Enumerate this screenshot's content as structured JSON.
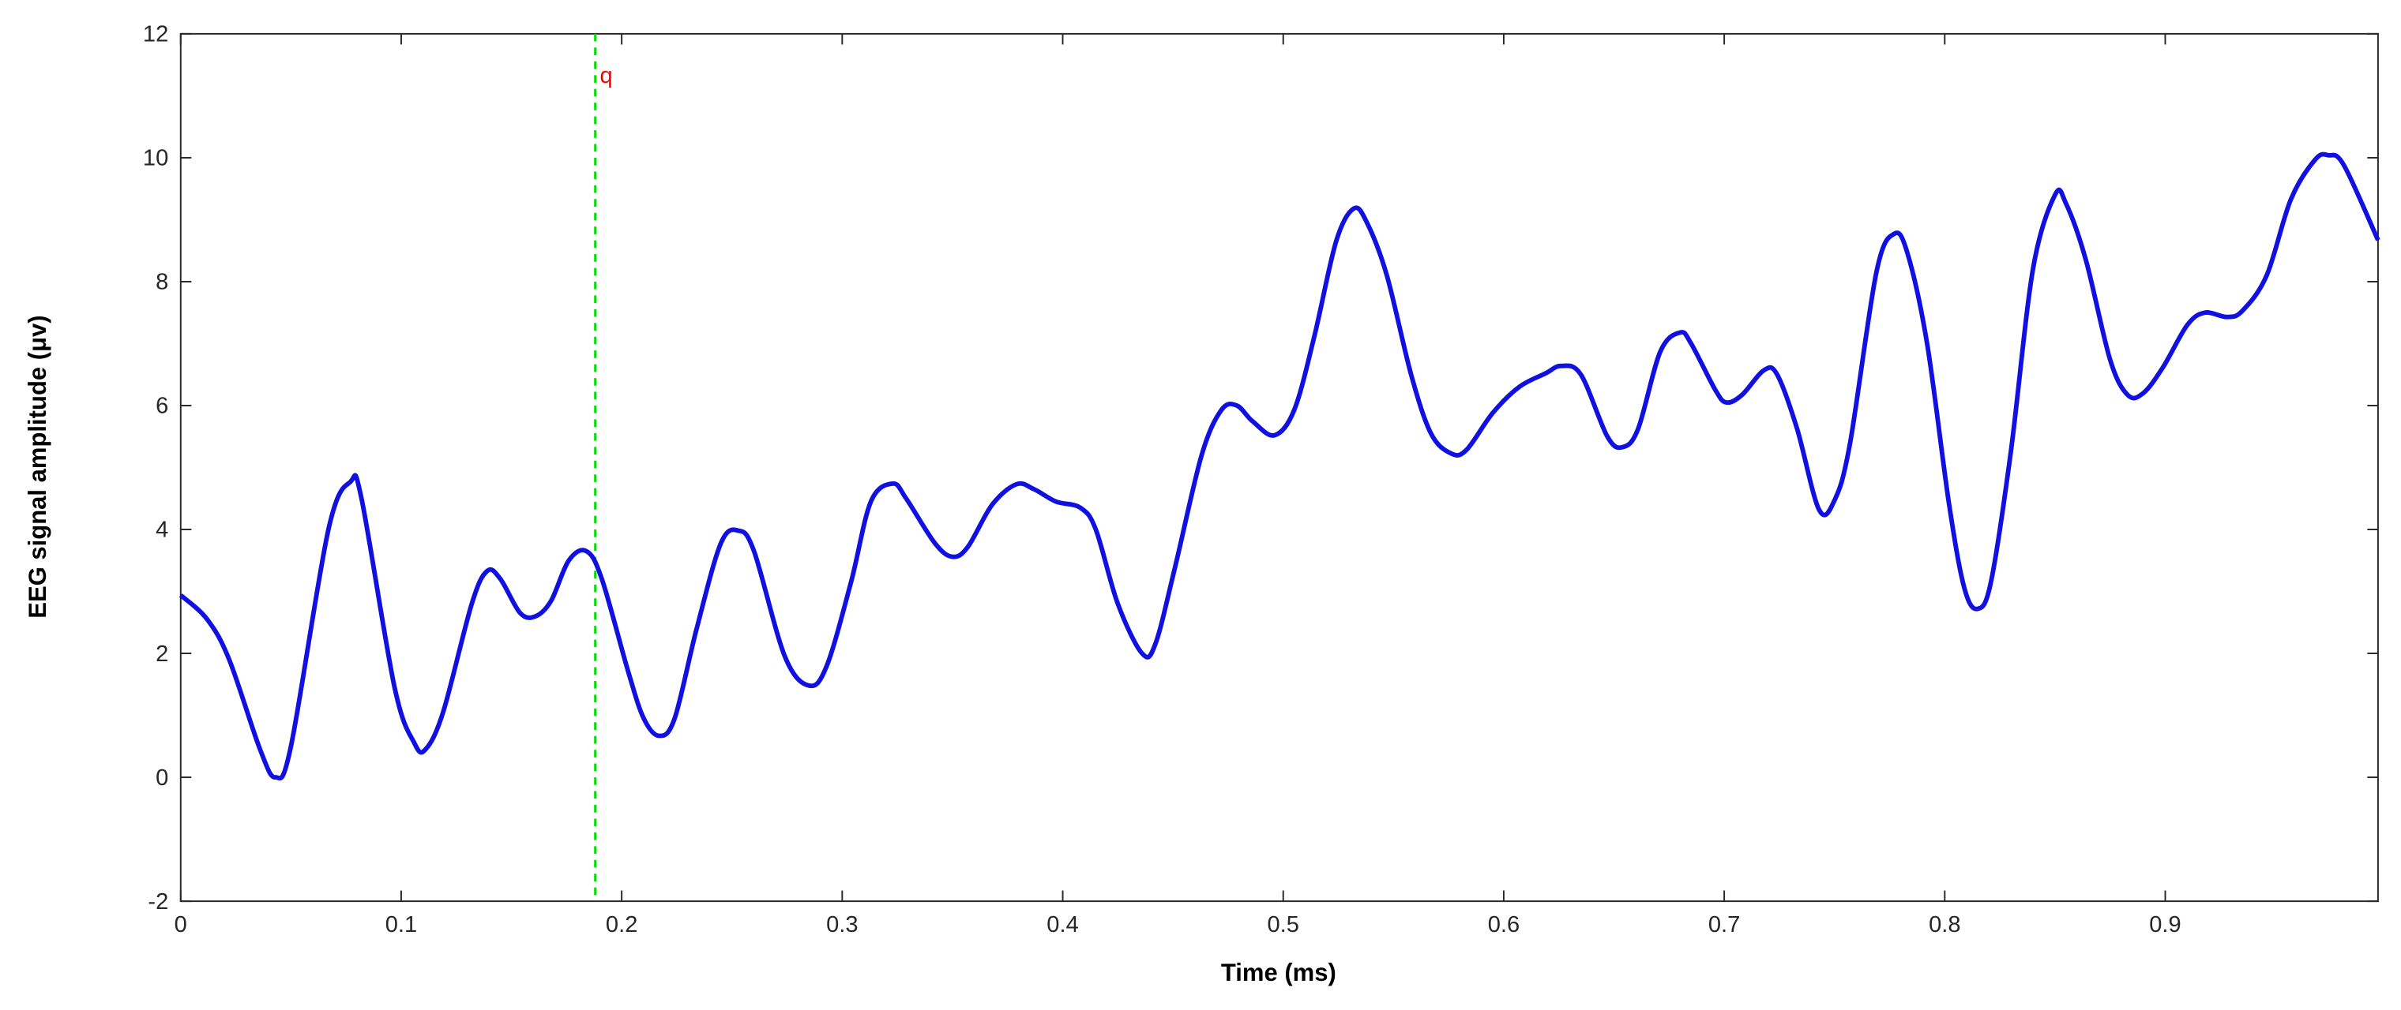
{
  "chart_data": {
    "type": "line",
    "xlabel": "Time (ms)",
    "ylabel": "EEG signal amplitude (μv)",
    "xlim": [
      0,
      0.9965
    ],
    "ylim": [
      -2,
      12
    ],
    "xticks": [
      0,
      0.1,
      0.2,
      0.3,
      0.4,
      0.5,
      0.6,
      0.7,
      0.8,
      0.9
    ],
    "yticks": [
      -2,
      0,
      2,
      4,
      6,
      8,
      10,
      12
    ],
    "grid": false,
    "vline": {
      "x": 0.188,
      "label": "q",
      "color": "#00e000",
      "label_color": "#ff0000"
    },
    "series": [
      {
        "name": "EEG",
        "color": "#1010e0",
        "x": [
          0,
          0.012,
          0.022,
          0.036,
          0.043,
          0.05,
          0.067,
          0.077,
          0.082,
          0.097,
          0.106,
          0.111,
          0.119,
          0.132,
          0.139,
          0.145,
          0.154,
          0.161,
          0.168,
          0.176,
          0.184,
          0.191,
          0.203,
          0.21,
          0.217,
          0.224,
          0.234,
          0.245,
          0.253,
          0.26,
          0.274,
          0.285,
          0.293,
          0.304,
          0.313,
          0.323,
          0.329,
          0.342,
          0.35,
          0.357,
          0.368,
          0.379,
          0.387,
          0.397,
          0.408,
          0.415,
          0.425,
          0.436,
          0.442,
          0.451,
          0.463,
          0.472,
          0.479,
          0.486,
          0.496,
          0.505,
          0.514,
          0.524,
          0.532,
          0.538,
          0.547,
          0.558,
          0.567,
          0.576,
          0.583,
          0.595,
          0.607,
          0.619,
          0.626,
          0.635,
          0.647,
          0.654,
          0.661,
          0.671,
          0.68,
          0.685,
          0.696,
          0.701,
          0.708,
          0.718,
          0.724,
          0.733,
          0.743,
          0.75,
          0.757,
          0.769,
          0.777,
          0.783,
          0.792,
          0.802,
          0.809,
          0.815,
          0.821,
          0.83,
          0.84,
          0.85,
          0.855,
          0.864,
          0.875,
          0.883,
          0.89,
          0.899,
          0.91,
          0.918,
          0.928,
          0.935,
          0.946,
          0.957,
          0.968,
          0.974,
          0.981,
          0.9965
        ],
        "values": [
          2.94,
          2.55,
          1.9,
          0.45,
          0.0,
          0.5,
          4.0,
          4.77,
          4.5,
          1.45,
          0.55,
          0.45,
          1.05,
          2.8,
          3.33,
          3.2,
          2.65,
          2.6,
          2.85,
          3.5,
          3.65,
          3.2,
          1.7,
          0.95,
          0.67,
          0.95,
          2.4,
          3.78,
          3.98,
          3.65,
          1.95,
          1.48,
          1.8,
          3.15,
          4.45,
          4.74,
          4.5,
          3.78,
          3.56,
          3.72,
          4.4,
          4.73,
          4.65,
          4.45,
          4.35,
          4.0,
          2.8,
          2.0,
          2.15,
          3.4,
          5.2,
          5.93,
          6.0,
          5.75,
          5.52,
          5.93,
          7.1,
          8.65,
          9.18,
          8.95,
          8.1,
          6.5,
          5.55,
          5.23,
          5.28,
          5.88,
          6.3,
          6.52,
          6.64,
          6.5,
          5.5,
          5.33,
          5.63,
          6.87,
          7.18,
          7.0,
          6.25,
          6.05,
          6.17,
          6.57,
          6.5,
          5.63,
          4.32,
          4.47,
          5.38,
          8.15,
          8.77,
          8.47,
          7.0,
          4.4,
          3.04,
          2.72,
          3.16,
          5.26,
          8.2,
          9.4,
          9.26,
          8.35,
          6.74,
          6.17,
          6.2,
          6.62,
          7.3,
          7.5,
          7.43,
          7.53,
          8.1,
          9.33,
          9.97,
          10.04,
          9.88,
          8.67
        ]
      }
    ]
  }
}
